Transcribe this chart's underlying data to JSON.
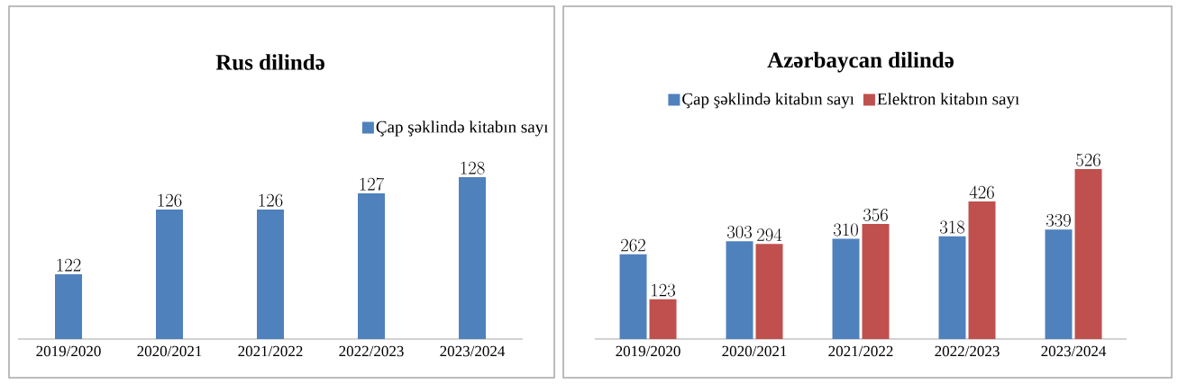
{
  "chart_data": [
    {
      "type": "bar",
      "title": "Rus dilində",
      "categories": [
        "2019/2020",
        "2020/2021",
        "2021/2022",
        "2022/2023",
        "2023/2024"
      ],
      "series": [
        {
          "name": "Çap şəklində kitabın sayı",
          "color": "#4f81bd",
          "values": [
            122,
            126,
            126,
            127,
            128
          ]
        }
      ],
      "ylim": [
        118,
        128
      ],
      "data_labels": true,
      "legend": "top right"
    },
    {
      "type": "bar",
      "title": "Azərbaycan dilində",
      "categories": [
        "2019/2020",
        "2020/2021",
        "2021/2022",
        "2022/2023",
        "2023/2024"
      ],
      "series": [
        {
          "name": "Çap şəklində kitabın sayı",
          "color": "#4f81bd",
          "values": [
            262,
            303,
            310,
            318,
            339
          ]
        },
        {
          "name": "Elektron kitabın sayı",
          "color": "#c0504d",
          "values": [
            123,
            294,
            356,
            426,
            526
          ]
        }
      ],
      "ylim": [
        0,
        526
      ],
      "data_labels": true,
      "legend": "top"
    }
  ]
}
